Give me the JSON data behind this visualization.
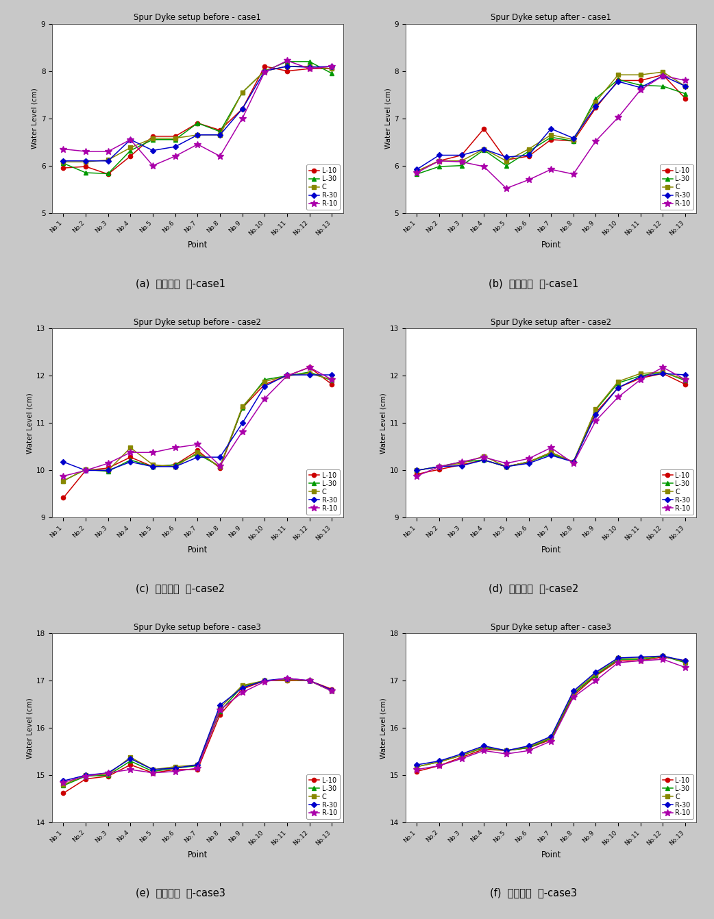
{
  "x_labels": [
    "No.1",
    "No.2",
    "No.3",
    "No.4",
    "No.5",
    "No.6",
    "No.7",
    "No.8",
    "No.9",
    "No.10",
    "No.11",
    "No.12",
    "No.13"
  ],
  "series_colors": {
    "L-10": "#cc0000",
    "L-30": "#009900",
    "C": "#888800",
    "R-30": "#0000cc",
    "R-10": "#aa00aa"
  },
  "case1_before": {
    "title": "Spur Dyke setup before - case1",
    "ylim": [
      5,
      9
    ],
    "yticks": [
      5,
      6,
      7,
      8,
      9
    ],
    "L-10": [
      5.95,
      5.98,
      5.82,
      6.2,
      6.62,
      6.62,
      6.9,
      6.75,
      7.2,
      8.1,
      8.0,
      8.05,
      8.05
    ],
    "L-30": [
      6.05,
      5.85,
      5.83,
      6.32,
      6.55,
      6.55,
      6.9,
      6.72,
      7.55,
      8.0,
      8.2,
      8.2,
      7.95
    ],
    "C": [
      6.08,
      6.08,
      6.12,
      6.38,
      6.58,
      6.58,
      6.65,
      6.65,
      7.55,
      8.0,
      8.1,
      8.1,
      8.05
    ],
    "R-30": [
      6.1,
      6.1,
      6.1,
      6.55,
      6.32,
      6.4,
      6.65,
      6.65,
      7.2,
      8.0,
      8.1,
      8.08,
      8.1
    ],
    "R-10": [
      6.35,
      6.3,
      6.3,
      6.55,
      6.0,
      6.2,
      6.45,
      6.2,
      7.0,
      7.98,
      8.22,
      8.05,
      8.1
    ]
  },
  "case1_after": {
    "title": "Spur Dyke setup after - case1",
    "ylim": [
      5,
      9
    ],
    "yticks": [
      5,
      6,
      7,
      8,
      9
    ],
    "L-10": [
      5.88,
      6.1,
      6.22,
      6.78,
      6.12,
      6.2,
      6.55,
      6.52,
      7.22,
      7.8,
      7.8,
      7.92,
      7.42
    ],
    "L-30": [
      5.82,
      5.98,
      6.0,
      6.33,
      6.0,
      6.3,
      6.6,
      6.52,
      7.42,
      7.82,
      7.7,
      7.68,
      7.52
    ],
    "C": [
      5.88,
      6.1,
      6.1,
      6.35,
      6.1,
      6.35,
      6.65,
      6.55,
      7.35,
      7.92,
      7.92,
      7.98,
      7.68
    ],
    "R-30": [
      5.92,
      6.22,
      6.22,
      6.35,
      6.18,
      6.22,
      6.78,
      6.58,
      7.25,
      7.78,
      7.65,
      7.9,
      7.68
    ],
    "R-10": [
      5.85,
      6.1,
      6.08,
      5.98,
      5.52,
      5.7,
      5.92,
      5.82,
      6.52,
      7.02,
      7.6,
      7.9,
      7.8
    ]
  },
  "case2_before": {
    "title": "Spur Dyke setup before - case2",
    "ylim": [
      9,
      13
    ],
    "yticks": [
      9,
      10,
      11,
      12,
      13
    ],
    "L-10": [
      9.42,
      10.0,
      10.05,
      10.28,
      10.08,
      10.12,
      10.42,
      10.05,
      11.32,
      11.82,
      12.0,
      12.18,
      11.82
    ],
    "L-30": [
      9.78,
      10.02,
      9.98,
      10.22,
      10.08,
      10.12,
      10.35,
      10.08,
      11.32,
      11.92,
      12.0,
      12.08,
      11.9
    ],
    "C": [
      9.78,
      10.02,
      10.0,
      10.48,
      10.12,
      10.08,
      10.38,
      10.08,
      11.35,
      11.88,
      12.0,
      12.05,
      11.92
    ],
    "R-30": [
      10.18,
      10.0,
      10.0,
      10.18,
      10.08,
      10.08,
      10.28,
      10.28,
      11.0,
      11.78,
      12.02,
      12.02,
      12.02
    ],
    "R-10": [
      9.88,
      10.0,
      10.15,
      10.38,
      10.38,
      10.48,
      10.55,
      10.1,
      10.82,
      11.52,
      12.0,
      12.18,
      11.92
    ]
  },
  "case2_after": {
    "title": "Spur Dyke setup after - case2",
    "ylim": [
      9,
      13
    ],
    "yticks": [
      9,
      10,
      11,
      12,
      13
    ],
    "L-10": [
      9.92,
      10.02,
      10.12,
      10.22,
      10.08,
      10.18,
      10.38,
      10.18,
      11.22,
      11.75,
      11.95,
      12.05,
      11.82
    ],
    "L-30": [
      10.0,
      10.08,
      10.18,
      10.22,
      10.08,
      10.18,
      10.35,
      10.18,
      11.28,
      11.85,
      12.0,
      12.08,
      11.9
    ],
    "C": [
      10.0,
      10.08,
      10.15,
      10.3,
      10.08,
      10.18,
      10.38,
      10.18,
      11.3,
      11.88,
      12.05,
      12.08,
      11.92
    ],
    "R-30": [
      10.0,
      10.08,
      10.1,
      10.22,
      10.08,
      10.15,
      10.32,
      10.18,
      11.18,
      11.75,
      11.98,
      12.05,
      12.02
    ],
    "R-10": [
      9.88,
      10.08,
      10.18,
      10.28,
      10.15,
      10.25,
      10.48,
      10.15,
      11.05,
      11.55,
      11.92,
      12.18,
      11.92
    ]
  },
  "case3_before": {
    "title": "Spur Dyke setup before - case3",
    "ylim": [
      14,
      18
    ],
    "yticks": [
      14,
      15,
      16,
      17,
      18
    ],
    "L-10": [
      14.62,
      14.92,
      14.98,
      15.22,
      15.05,
      15.12,
      15.12,
      16.28,
      16.82,
      17.0,
      17.0,
      17.0,
      16.82
    ],
    "L-30": [
      14.78,
      14.98,
      15.0,
      15.3,
      15.08,
      15.15,
      15.2,
      16.35,
      16.88,
      17.0,
      17.02,
      17.0,
      16.78
    ],
    "C": [
      14.8,
      15.0,
      15.02,
      15.38,
      15.12,
      15.18,
      15.22,
      16.42,
      16.9,
      17.0,
      17.02,
      17.0,
      16.78
    ],
    "R-30": [
      14.88,
      15.0,
      15.05,
      15.35,
      15.12,
      15.15,
      15.22,
      16.48,
      16.85,
      17.0,
      17.05,
      17.0,
      16.8
    ],
    "R-10": [
      14.85,
      14.98,
      15.05,
      15.12,
      15.05,
      15.08,
      15.15,
      16.38,
      16.75,
      16.98,
      17.05,
      17.0,
      16.78
    ]
  },
  "case3_after": {
    "title": "Spur Dyke setup after - case3",
    "ylim": [
      14,
      18
    ],
    "yticks": [
      14,
      15,
      16,
      17,
      18
    ],
    "L-10": [
      15.08,
      15.2,
      15.38,
      15.55,
      15.52,
      15.58,
      15.75,
      16.68,
      17.1,
      17.42,
      17.42,
      17.5,
      17.42
    ],
    "L-30": [
      15.18,
      15.28,
      15.42,
      15.58,
      15.52,
      15.58,
      15.78,
      16.72,
      17.12,
      17.45,
      17.45,
      17.52,
      17.38
    ],
    "C": [
      15.18,
      15.28,
      15.42,
      15.6,
      15.52,
      15.6,
      15.8,
      16.75,
      17.15,
      17.48,
      17.48,
      17.52,
      17.4
    ],
    "R-30": [
      15.22,
      15.3,
      15.45,
      15.62,
      15.52,
      15.62,
      15.82,
      16.78,
      17.18,
      17.48,
      17.5,
      17.52,
      17.42
    ],
    "R-10": [
      15.12,
      15.2,
      15.35,
      15.52,
      15.45,
      15.52,
      15.72,
      16.65,
      17.0,
      17.38,
      17.42,
      17.45,
      17.28
    ]
  },
  "ylabel": "Water Level (cm)",
  "xlabel": "Point",
  "outer_bg": "#c8c8c8",
  "panel_bg": "#ffffff",
  "plot_bg": "#ffffff",
  "series_names": [
    "L-10",
    "L-30",
    "C",
    "R-30",
    "R-10"
  ],
  "captions": [
    "(a)  수제설치  전-case1",
    "(b)  수제설치  후-case1",
    "(c)  수제설치  전-case2",
    "(d)  수제설치  후-case2",
    "(e)  수제설치  전-case3",
    "(f)  수제설치  후-case3"
  ]
}
